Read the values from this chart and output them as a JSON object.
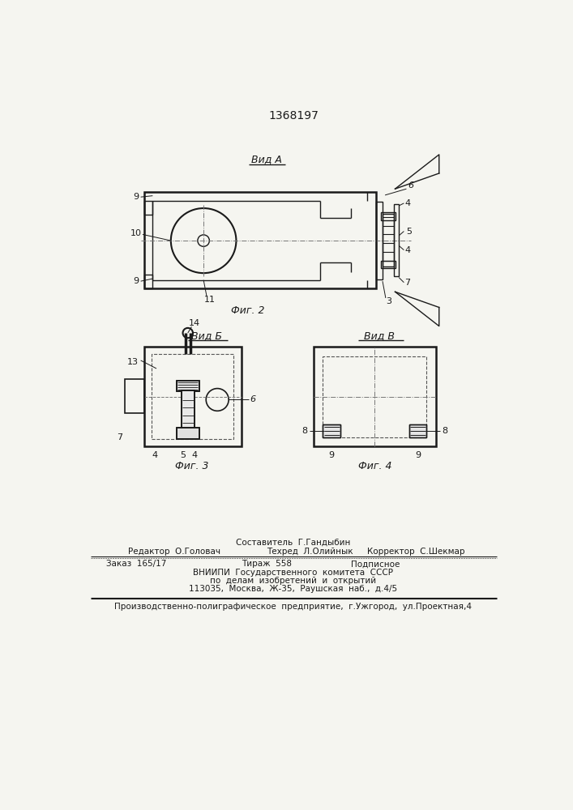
{
  "patent_number": "1368197",
  "background_color": "#f5f5f0",
  "line_color": "#1a1a1a",
  "footer_line1": "Составитель  Г.Гандыбин",
  "footer_line2_left": "Редактор  О.Головач",
  "footer_line2_mid": "Техред  Л.Олийнык",
  "footer_line2_right": "Корректор  С.Шекмар",
  "footer_line3": "Заказ  165/17",
  "footer_line3_mid": "Тираж  558",
  "footer_line3_right": "Подписное",
  "footer_line4": "ВНИИПИ  Государственного  комитета  СССР",
  "footer_line5": "по  делам  изобретений  и  открытий",
  "footer_line6": "113035,  Москва,  Ж-35,  Раушская  наб.,  д.4/5",
  "footer_line7": "Производственно-полиграфическое  предприятие,  г.Ужгород,  ул.Проектная,4"
}
